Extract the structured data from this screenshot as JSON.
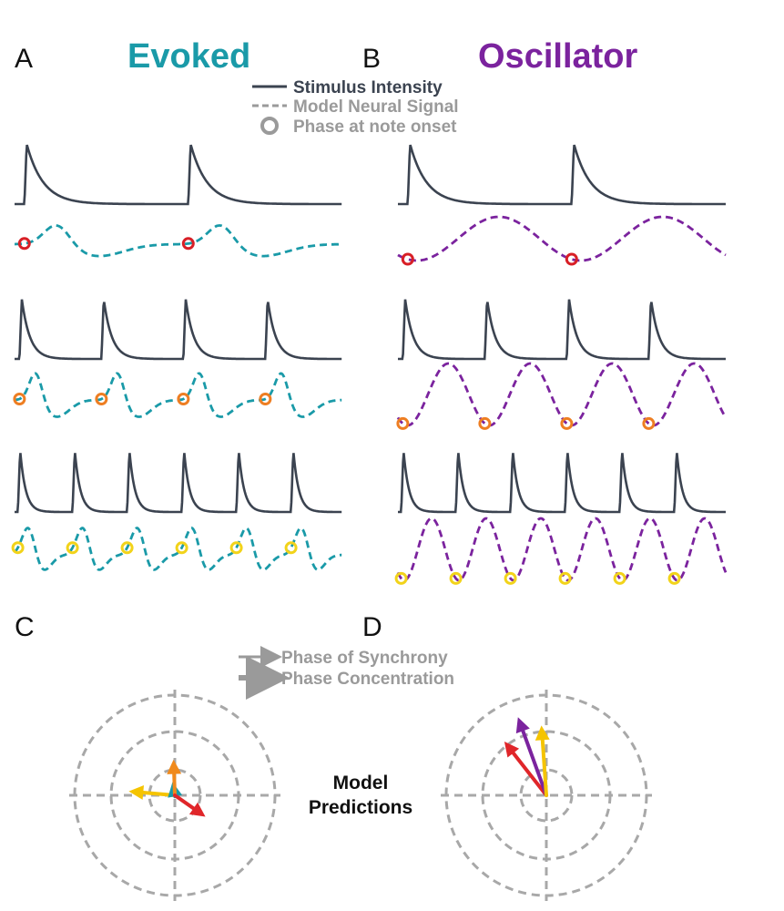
{
  "panels": {
    "A": {
      "letter": "A",
      "title": "Evoked"
    },
    "B": {
      "letter": "B",
      "title": "Oscillator"
    },
    "C": {
      "letter": "C"
    },
    "D": {
      "letter": "D"
    }
  },
  "legend_top": {
    "stimulus": "Stimulus Intensity",
    "model": "Model Neural Signal",
    "phase": "Phase at note onset"
  },
  "legend_bottom": {
    "sync": "Phase of Synchrony",
    "concentration": "Phase Concentration"
  },
  "model_label": {
    "line1": "Model",
    "line2": "Predictions"
  },
  "colors": {
    "evoked": "#1a9aa8",
    "oscillator": "#7b239e",
    "stimulus": "#3b4350",
    "legend_gray": "#9a9a9a",
    "grid": "#a8a8a8",
    "rate_slow": "#e0262a",
    "rate_medium": "#f08a1c",
    "rate_fast": "#f5c400",
    "phase_slow": "#d81f26",
    "phase_medium": "#ee7e22",
    "phase_fast": "#f2d31a"
  },
  "rows": [
    {
      "name": "slow",
      "onsets": 2,
      "marker": "phase_slow"
    },
    {
      "name": "medium",
      "onsets": 4,
      "marker": "phase_medium"
    },
    {
      "name": "fast",
      "onsets": 6,
      "marker": "phase_fast"
    }
  ],
  "polar": {
    "evoked": [
      {
        "name": "fast",
        "color": "rate_fast",
        "angle_deg": 175,
        "length": 0.62
      },
      {
        "name": "teal",
        "color": "evoked",
        "angle_deg": 100,
        "length": 0.18
      },
      {
        "name": "medium",
        "color": "rate_medium",
        "angle_deg": 92,
        "length": 0.48
      },
      {
        "name": "slow",
        "color": "rate_slow",
        "angle_deg": -35,
        "length": 0.5
      }
    ],
    "oscillator": [
      {
        "name": "slow",
        "color": "rate_slow",
        "angle_deg": 128,
        "length": 0.78
      },
      {
        "name": "medium",
        "color": "oscillator",
        "angle_deg": 110,
        "length": 0.95
      },
      {
        "name": "fast",
        "color": "rate_fast",
        "angle_deg": 94,
        "length": 0.8
      }
    ]
  }
}
